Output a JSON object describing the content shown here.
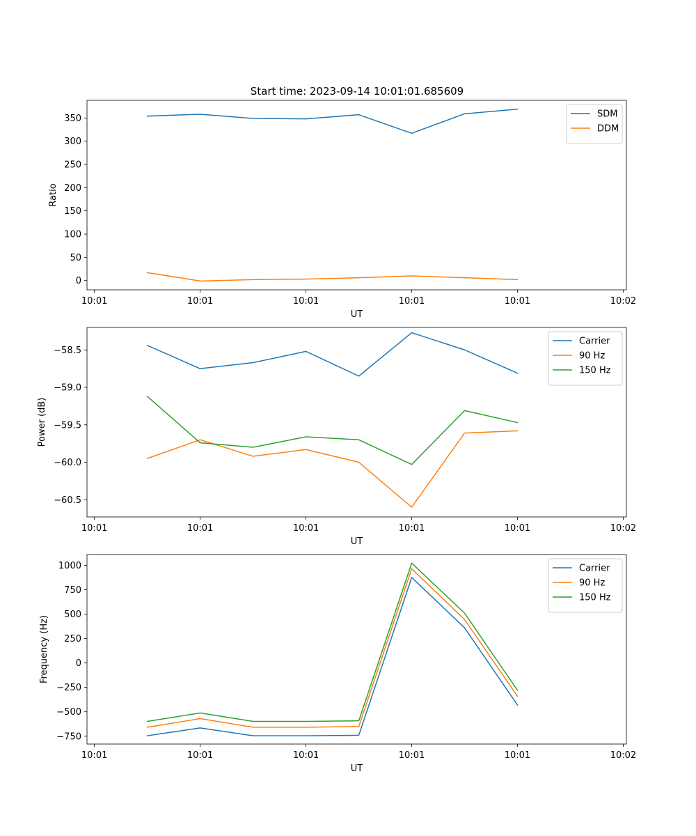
{
  "figure_title": "Start time: 2023-09-14 10:01:01.685609",
  "colors": {
    "blue": "#1f77b4",
    "orange": "#ff7f0e",
    "green": "#2ca02c"
  },
  "chart_data": [
    {
      "type": "line",
      "title": "Start time: 2023-09-14 10:01:01.685609",
      "xlabel": "UT",
      "ylabel": "Ratio",
      "x": [
        0.5,
        1.0,
        1.5,
        2.0,
        2.5,
        3.0,
        3.5,
        4.0
      ],
      "xlim": [
        -0.07,
        5.03
      ],
      "xticks": [
        0,
        1,
        2,
        3,
        4,
        5
      ],
      "xticklabels": [
        "10:01",
        "10:01",
        "10:01",
        "10:01",
        "10:01",
        "10:02"
      ],
      "ylim": [
        -20,
        388
      ],
      "yticks": [
        0,
        50,
        100,
        150,
        200,
        250,
        300,
        350
      ],
      "yticklabels": [
        "0",
        "50",
        "100",
        "150",
        "200",
        "250",
        "300",
        "350"
      ],
      "legend_position": "top-right",
      "series": [
        {
          "name": "SDM",
          "color": "#1f77b4",
          "values": [
            354,
            358,
            349,
            348,
            357,
            317,
            359,
            369
          ]
        },
        {
          "name": "DDM",
          "color": "#ff7f0e",
          "values": [
            17,
            -1,
            2,
            3,
            6,
            10,
            6,
            2
          ]
        }
      ]
    },
    {
      "type": "line",
      "title": "",
      "xlabel": "UT",
      "ylabel": "Power (dB)",
      "x": [
        0.5,
        1.0,
        1.5,
        2.0,
        2.5,
        3.0,
        3.5,
        4.0
      ],
      "xlim": [
        -0.07,
        5.03
      ],
      "xticks": [
        0,
        1,
        2,
        3,
        4,
        5
      ],
      "xticklabels": [
        "10:01",
        "10:01",
        "10:01",
        "10:01",
        "10:01",
        "10:02"
      ],
      "ylim": [
        -60.73,
        -58.2
      ],
      "yticks": [
        -60.5,
        -60.0,
        -59.5,
        -59.0,
        -58.5
      ],
      "yticklabels": [
        "−60.5",
        "−60.0",
        "−59.5",
        "−59.0",
        "−58.5"
      ],
      "legend_position": "top-right",
      "series": [
        {
          "name": "Carrier",
          "color": "#1f77b4",
          "values": [
            -58.44,
            -58.75,
            -58.67,
            -58.52,
            -58.85,
            -58.27,
            -58.5,
            -58.81
          ]
        },
        {
          "name": "90 Hz",
          "color": "#ff7f0e",
          "values": [
            -59.95,
            -59.7,
            -59.92,
            -59.83,
            -60.0,
            -60.6,
            -59.61,
            -59.58
          ]
        },
        {
          "name": "150 Hz",
          "color": "#2ca02c",
          "values": [
            -59.12,
            -59.74,
            -59.8,
            -59.66,
            -59.7,
            -60.03,
            -59.31,
            -59.47
          ]
        }
      ]
    },
    {
      "type": "line",
      "title": "",
      "xlabel": "UT",
      "ylabel": "Frequency (Hz)",
      "x": [
        0.5,
        1.0,
        1.5,
        2.0,
        2.5,
        3.0,
        3.5,
        4.0
      ],
      "xlim": [
        -0.07,
        5.03
      ],
      "xticks": [
        0,
        1,
        2,
        3,
        4,
        5
      ],
      "xticklabels": [
        "10:01",
        "10:01",
        "10:01",
        "10:01",
        "10:01",
        "10:02"
      ],
      "ylim": [
        -830,
        1110
      ],
      "yticks": [
        -750,
        -500,
        -250,
        0,
        250,
        500,
        750,
        1000
      ],
      "yticklabels": [
        "−750",
        "−500",
        "−250",
        "0",
        "250",
        "500",
        "750",
        "1000"
      ],
      "legend_position": "top-right",
      "series": [
        {
          "name": "Carrier",
          "color": "#1f77b4",
          "values": [
            -745,
            -665,
            -745,
            -745,
            -740,
            875,
            360,
            -430
          ]
        },
        {
          "name": "90 Hz",
          "color": "#ff7f0e",
          "values": [
            -658,
            -570,
            -658,
            -658,
            -650,
            965,
            445,
            -340
          ]
        },
        {
          "name": "150 Hz",
          "color": "#2ca02c",
          "values": [
            -598,
            -512,
            -598,
            -598,
            -592,
            1022,
            510,
            -280
          ]
        }
      ]
    }
  ]
}
